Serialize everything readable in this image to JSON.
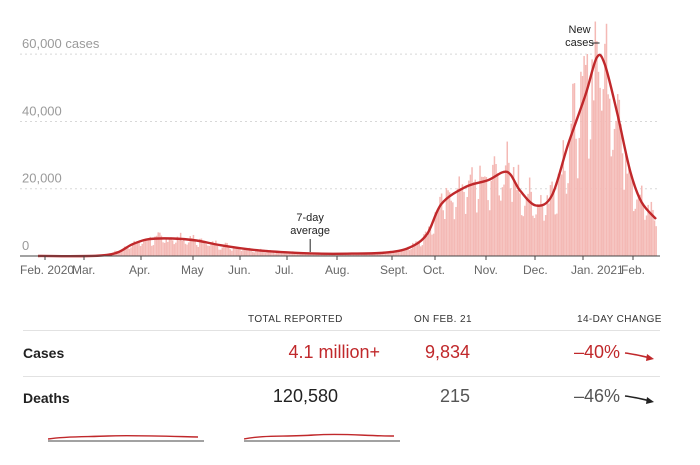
{
  "chart_data": {
    "type": "bar",
    "title": "",
    "xlabel": "",
    "ylabel": "",
    "ylim": [
      0,
      66000
    ],
    "y_ticks": [
      {
        "value": 0,
        "label": "0"
      },
      {
        "value": 20000,
        "label": "20,000"
      },
      {
        "value": 40000,
        "label": "40,000"
      },
      {
        "value": 60000,
        "label": "60,000 cases"
      }
    ],
    "x_ticks": [
      "Feb. 2020",
      "Mar.",
      "Apr.",
      "May",
      "Jun.",
      "Jul.",
      "Aug.",
      "Sept.",
      "Oct.",
      "Nov.",
      "Dec.",
      "Jan. 2021",
      "Feb."
    ],
    "grid": true,
    "series": [
      {
        "name": "New cases",
        "style": "daily bars",
        "color": "#f4b9b5"
      },
      {
        "name": "7-day average",
        "style": "line",
        "color": "#c0282b"
      }
    ],
    "average_points": [
      {
        "x": "2020-02-01",
        "y": 0
      },
      {
        "x": "2020-03-15",
        "y": 300
      },
      {
        "x": "2020-03-31",
        "y": 3500
      },
      {
        "x": "2020-04-10",
        "y": 5000
      },
      {
        "x": "2020-04-25",
        "y": 5200
      },
      {
        "x": "2020-05-10",
        "y": 4600
      },
      {
        "x": "2020-05-25",
        "y": 3200
      },
      {
        "x": "2020-06-15",
        "y": 1800
      },
      {
        "x": "2020-07-05",
        "y": 1100
      },
      {
        "x": "2020-07-25",
        "y": 700
      },
      {
        "x": "2020-08-15",
        "y": 700
      },
      {
        "x": "2020-09-05",
        "y": 1000
      },
      {
        "x": "2020-09-20",
        "y": 2500
      },
      {
        "x": "2020-10-01",
        "y": 6500
      },
      {
        "x": "2020-10-10",
        "y": 15500
      },
      {
        "x": "2020-10-25",
        "y": 20500
      },
      {
        "x": "2020-11-08",
        "y": 22500
      },
      {
        "x": "2020-11-20",
        "y": 25000
      },
      {
        "x": "2020-11-28",
        "y": 19500
      },
      {
        "x": "2020-12-08",
        "y": 15000
      },
      {
        "x": "2020-12-18",
        "y": 18000
      },
      {
        "x": "2020-12-28",
        "y": 33000
      },
      {
        "x": "2021-01-08",
        "y": 48000
      },
      {
        "x": "2021-01-15",
        "y": 59000
      },
      {
        "x": "2021-01-20",
        "y": 57000
      },
      {
        "x": "2021-01-28",
        "y": 42000
      },
      {
        "x": "2021-02-05",
        "y": 25000
      },
      {
        "x": "2021-02-12",
        "y": 16000
      },
      {
        "x": "2021-02-21",
        "y": 11000
      }
    ],
    "annotations": [
      {
        "text_lines": [
          "7-day",
          "average"
        ],
        "x": "2020-07-20",
        "y": 700
      },
      {
        "text_lines": [
          "New",
          "cases"
        ],
        "x": "2021-01-13",
        "y": 63000
      }
    ]
  },
  "stats": {
    "headers": {
      "total": "TOTAL REPORTED",
      "on_date": "ON FEB. 21",
      "change": "14-DAY CHANGE"
    },
    "rows": [
      {
        "label": "Cases",
        "total": "4.1 million+",
        "on_date": "9,834",
        "change": "–40%",
        "accent": true
      },
      {
        "label": "Deaths",
        "total": "120,580",
        "on_date": "215",
        "change": "–46%",
        "accent": false
      }
    ]
  },
  "colors": {
    "accent": "#c0282b",
    "bar": "#f4b9b5",
    "grid": "#d8d8d8",
    "text_dark": "#222222"
  }
}
